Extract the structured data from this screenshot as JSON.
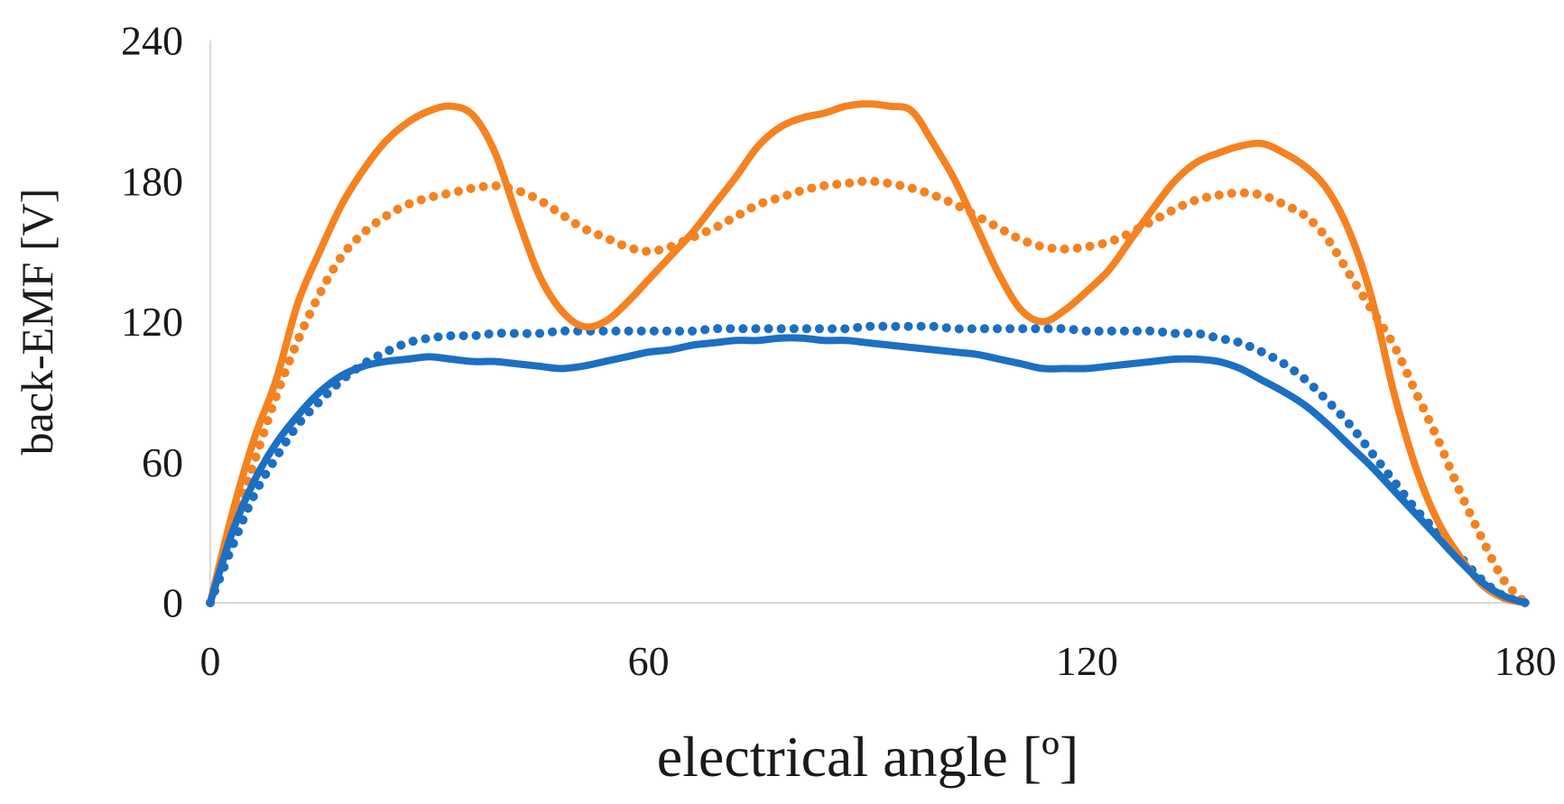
{
  "chart_data": {
    "type": "line",
    "title": "",
    "xlabel": "electrical angle [º]",
    "ylabel": "back-EMF [V]",
    "xlim": [
      0,
      180
    ],
    "ylim": [
      0,
      240
    ],
    "xticks": [
      "0",
      "60",
      "120",
      "180"
    ],
    "yticks": [
      "0",
      "60",
      "120",
      "180",
      "240"
    ],
    "grid": false,
    "legend": "none",
    "series": [
      {
        "name": "orange-solid",
        "style": "solid",
        "color": "#F58220",
        "x": [
          0,
          3,
          6,
          9,
          12,
          15,
          18,
          21,
          24,
          27,
          30,
          33,
          36,
          39,
          42,
          45,
          48,
          51,
          54,
          57,
          60,
          63,
          66,
          69,
          72,
          75,
          78,
          81,
          84,
          87,
          90,
          93,
          96,
          99,
          102,
          105,
          108,
          111,
          114,
          117,
          120,
          123,
          126,
          129,
          132,
          135,
          138,
          141,
          144,
          147,
          150,
          153,
          156,
          159,
          162,
          165,
          168,
          171,
          174,
          177,
          180
        ],
        "y": [
          0,
          38,
          70,
          95,
          128,
          150,
          170,
          185,
          197,
          205,
          210,
          212,
          208,
          192,
          165,
          140,
          125,
          118,
          120,
          128,
          138,
          148,
          158,
          170,
          182,
          195,
          203,
          207,
          209,
          212,
          213,
          212,
          210,
          196,
          180,
          160,
          140,
          125,
          120,
          125,
          133,
          142,
          155,
          168,
          180,
          188,
          192,
          195,
          196,
          192,
          186,
          176,
          158,
          130,
          90,
          58,
          35,
          20,
          8,
          2,
          0
        ]
      },
      {
        "name": "orange-dotted",
        "style": "dotted",
        "color": "#F58220",
        "x": [
          0,
          3,
          6,
          9,
          12,
          15,
          18,
          21,
          24,
          27,
          30,
          33,
          36,
          39,
          42,
          45,
          48,
          51,
          54,
          57,
          60,
          63,
          66,
          69,
          72,
          75,
          78,
          81,
          84,
          87,
          90,
          93,
          96,
          99,
          102,
          105,
          108,
          111,
          114,
          117,
          120,
          123,
          126,
          129,
          132,
          135,
          138,
          141,
          144,
          147,
          150,
          153,
          156,
          159,
          162,
          165,
          168,
          171,
          174,
          177,
          180
        ],
        "y": [
          0,
          32,
          60,
          88,
          112,
          132,
          148,
          158,
          165,
          170,
          173,
          175,
          177,
          178,
          176,
          172,
          166,
          160,
          156,
          152,
          150,
          152,
          156,
          160,
          165,
          170,
          173,
          176,
          178,
          179,
          180,
          179,
          177,
          174,
          170,
          165,
          160,
          155,
          152,
          151,
          152,
          154,
          158,
          163,
          168,
          172,
          174,
          175,
          174,
          170,
          165,
          155,
          140,
          125,
          110,
          90,
          70,
          48,
          28,
          10,
          0
        ]
      },
      {
        "name": "blue-solid",
        "style": "solid",
        "color": "#1C6FC2",
        "x": [
          0,
          3,
          6,
          9,
          12,
          15,
          18,
          21,
          24,
          27,
          30,
          33,
          36,
          39,
          42,
          45,
          48,
          51,
          54,
          57,
          60,
          63,
          66,
          69,
          72,
          75,
          78,
          81,
          84,
          87,
          90,
          93,
          96,
          99,
          102,
          105,
          108,
          111,
          114,
          117,
          120,
          123,
          126,
          129,
          132,
          135,
          138,
          141,
          144,
          147,
          150,
          153,
          156,
          159,
          162,
          165,
          168,
          171,
          174,
          177,
          180
        ],
        "y": [
          0,
          30,
          52,
          68,
          80,
          90,
          97,
          101,
          103,
          104,
          105,
          104,
          103,
          103,
          102,
          101,
          100,
          101,
          103,
          105,
          107,
          108,
          110,
          111,
          112,
          112,
          113,
          113,
          112,
          112,
          111,
          110,
          109,
          108,
          107,
          106,
          104,
          102,
          100,
          100,
          100,
          101,
          102,
          103,
          104,
          104,
          103,
          100,
          95,
          90,
          84,
          76,
          67,
          58,
          48,
          38,
          28,
          18,
          9,
          3,
          0
        ]
      },
      {
        "name": "blue-dotted",
        "style": "dotted",
        "color": "#1C6FC2",
        "x": [
          0,
          3,
          6,
          9,
          12,
          15,
          18,
          21,
          24,
          27,
          30,
          33,
          36,
          39,
          42,
          45,
          48,
          51,
          54,
          57,
          60,
          63,
          66,
          69,
          72,
          75,
          78,
          81,
          84,
          87,
          90,
          93,
          96,
          99,
          102,
          105,
          108,
          111,
          114,
          117,
          120,
          123,
          126,
          129,
          132,
          135,
          138,
          141,
          144,
          147,
          150,
          153,
          156,
          159,
          162,
          165,
          168,
          171,
          174,
          177,
          180
        ],
        "y": [
          0,
          24,
          46,
          62,
          76,
          86,
          95,
          102,
          107,
          111,
          113,
          114,
          114,
          115,
          115,
          115,
          116,
          116,
          116,
          116,
          116,
          116,
          116,
          117,
          117,
          117,
          117,
          117,
          117,
          117,
          118,
          118,
          118,
          118,
          117,
          117,
          117,
          117,
          117,
          117,
          116,
          116,
          116,
          116,
          115,
          115,
          113,
          111,
          107,
          102,
          95,
          86,
          76,
          64,
          52,
          40,
          30,
          20,
          10,
          3,
          0
        ]
      }
    ]
  }
}
